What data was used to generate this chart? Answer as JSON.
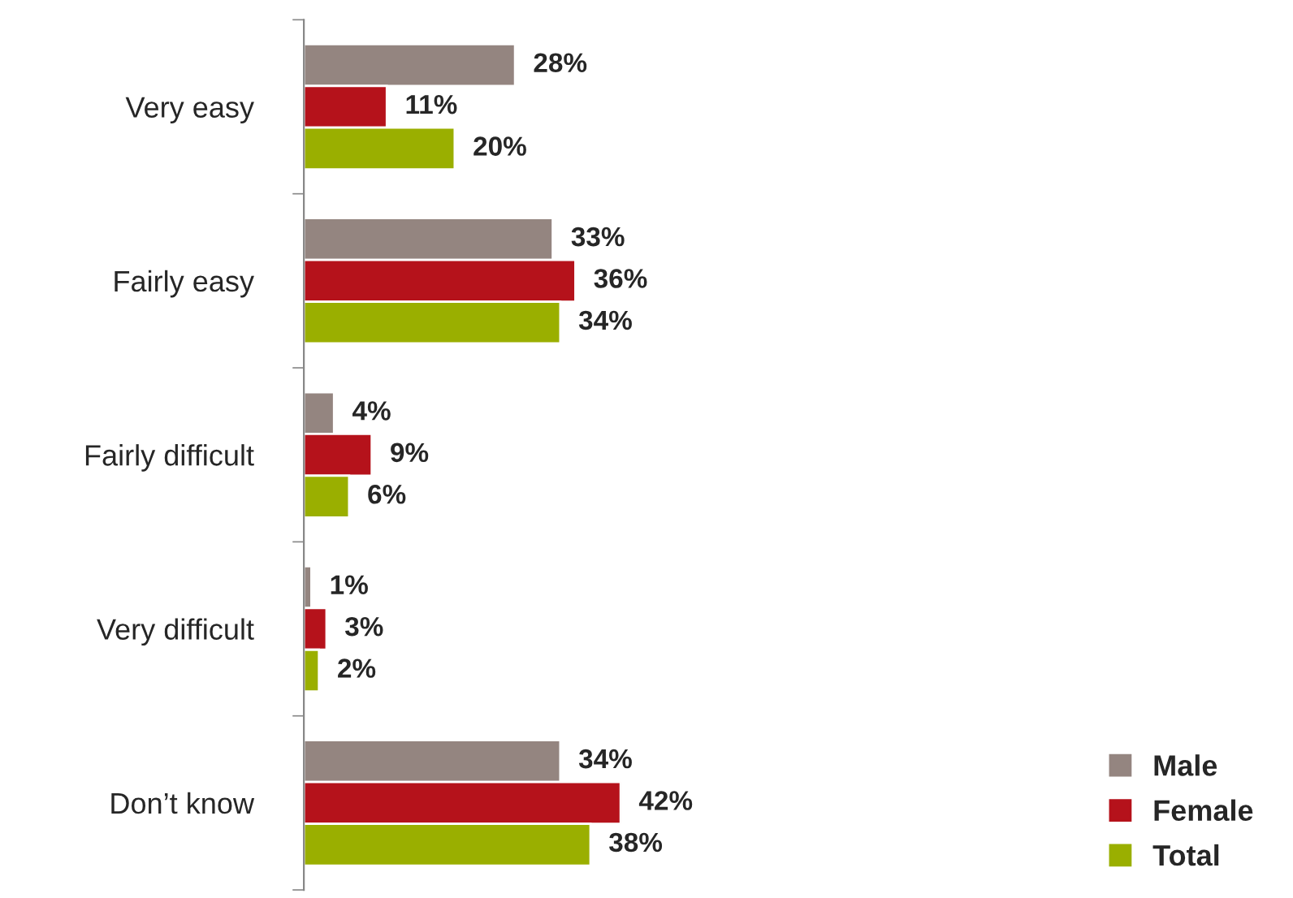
{
  "chart_data": {
    "type": "bar",
    "orientation": "horizontal",
    "categories": [
      "Very easy",
      "Fairly easy",
      "Fairly difficult",
      "Very difficult",
      "Don’t know"
    ],
    "series": [
      {
        "name": "Male",
        "color": "#948580",
        "values": [
          28,
          33,
          4,
          1,
          34
        ],
        "value_labels": [
          "28%",
          "33%",
          "4%",
          "1%",
          "34%"
        ]
      },
      {
        "name": "Female",
        "color": "#b5121b",
        "values": [
          11,
          36,
          9,
          3,
          42
        ],
        "value_labels": [
          "11%",
          "36%",
          "9%",
          "3%",
          "42%"
        ]
      },
      {
        "name": "Total",
        "color": "#9aaf00",
        "values": [
          20,
          34,
          6,
          2,
          38
        ],
        "value_labels": [
          "20%",
          "34%",
          "6%",
          "2%",
          "38%"
        ]
      }
    ],
    "legend": "bottom right",
    "grid": false
  }
}
